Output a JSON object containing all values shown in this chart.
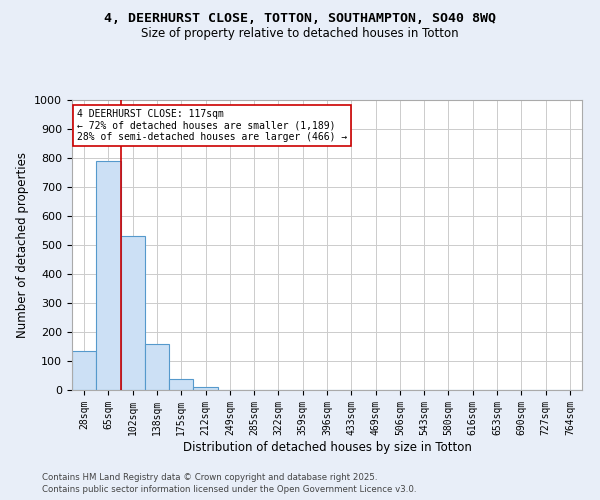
{
  "title_line1": "4, DEERHURST CLOSE, TOTTON, SOUTHAMPTON, SO40 8WQ",
  "title_line2": "Size of property relative to detached houses in Totton",
  "xlabel": "Distribution of detached houses by size in Totton",
  "ylabel": "Number of detached properties",
  "categories": [
    "28sqm",
    "65sqm",
    "102sqm",
    "138sqm",
    "175sqm",
    "212sqm",
    "249sqm",
    "285sqm",
    "322sqm",
    "359sqm",
    "396sqm",
    "433sqm",
    "469sqm",
    "506sqm",
    "543sqm",
    "580sqm",
    "616sqm",
    "653sqm",
    "690sqm",
    "727sqm",
    "764sqm"
  ],
  "values": [
    135,
    790,
    530,
    160,
    38,
    10,
    0,
    0,
    0,
    0,
    0,
    0,
    0,
    0,
    0,
    0,
    0,
    0,
    0,
    0,
    0
  ],
  "bar_color": "#cce0f5",
  "bar_edge_color": "#5599cc",
  "annotation_text_line1": "4 DEERHURST CLOSE: 117sqm",
  "annotation_text_line2": "← 72% of detached houses are smaller (1,189)",
  "annotation_text_line3": "28% of semi-detached houses are larger (466) →",
  "vline_color": "#cc0000",
  "annotation_box_edge_color": "#cc0000",
  "ylim": [
    0,
    1000
  ],
  "yticks": [
    0,
    100,
    200,
    300,
    400,
    500,
    600,
    700,
    800,
    900,
    1000
  ],
  "footnote_line1": "Contains HM Land Registry data © Crown copyright and database right 2025.",
  "footnote_line2": "Contains public sector information licensed under the Open Government Licence v3.0.",
  "bg_color": "#e8eef8",
  "plot_bg_color": "#ffffff",
  "grid_color": "#cccccc"
}
